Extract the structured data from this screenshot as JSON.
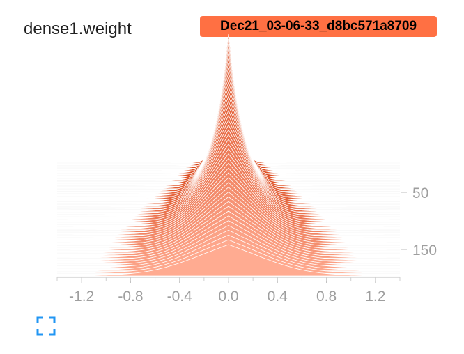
{
  "card": {
    "title": "dense1.weight",
    "run_label": "Dec21_03-06-33_d8bc571a8709",
    "run_color": "#ff7043",
    "expand_icon": "fullscreen-icon",
    "accent_color": "#2196f3"
  },
  "chart_data": {
    "type": "histogram-offset",
    "x_ticks": [
      "-1.2",
      "-0.8",
      "-0.4",
      "0.0",
      "0.4",
      "0.8",
      "1.2"
    ],
    "y_ticks": [
      "50",
      "150"
    ],
    "xlim": [
      -1.4,
      1.4
    ],
    "steps_shown": 45,
    "oldest_color": "#d84315",
    "newest_color": "#ffab91"
  }
}
